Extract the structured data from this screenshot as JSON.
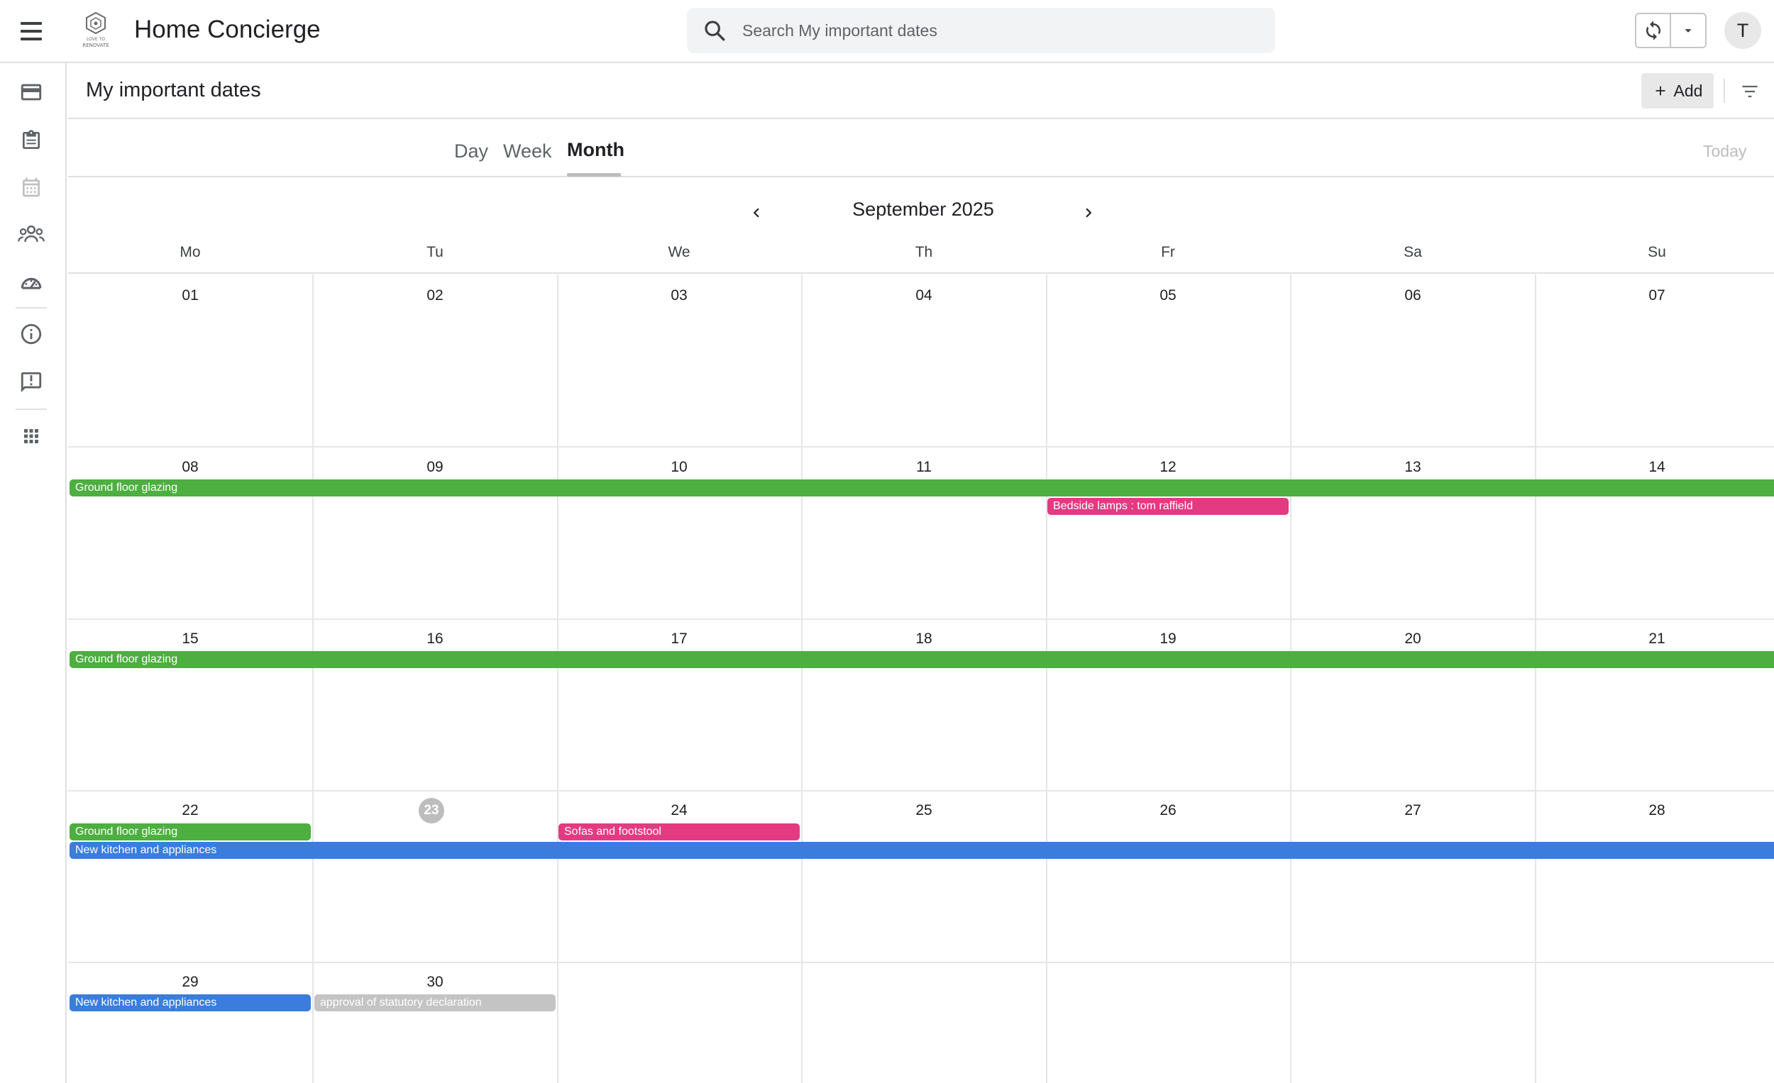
{
  "topbar": {
    "app_title": "Home Concierge",
    "logo_text_top": "LOVE TO",
    "logo_text_bottom": "RENOVATE",
    "search_placeholder": "Search My important dates",
    "avatar_initial": "T"
  },
  "sidebar": {
    "items": [
      "card-icon",
      "clipboard-icon",
      "calendar-icon",
      "people-icon",
      "dashboard-icon",
      "info-icon",
      "feedback-icon",
      "apps-grid-icon"
    ]
  },
  "header": {
    "title": "My important dates",
    "add_label": "Add"
  },
  "views": {
    "day": "Day",
    "week": "Week",
    "month": "Month",
    "selected": "Month",
    "today_label": "Today"
  },
  "calendar": {
    "month_label": "September 2025",
    "weekdays": [
      "Mo",
      "Tu",
      "We",
      "Th",
      "Fr",
      "Sa",
      "Su"
    ],
    "weeks": [
      [
        "01",
        "02",
        "03",
        "04",
        "05",
        "06",
        "07"
      ],
      [
        "08",
        "09",
        "10",
        "11",
        "12",
        "13",
        "14"
      ],
      [
        "15",
        "16",
        "17",
        "18",
        "19",
        "20",
        "21"
      ],
      [
        "22",
        "23",
        "24",
        "25",
        "26",
        "27",
        "28"
      ],
      [
        "29",
        "30",
        "",
        "",
        "",
        "",
        ""
      ]
    ],
    "today": "23",
    "events": [
      {
        "title": "Ground floor glazing",
        "color": "#4caf3f"
      },
      {
        "title": "Bedside lamps : tom raffield",
        "color": "#e33a82"
      },
      {
        "title": "Ground floor glazing",
        "color": "#4caf3f"
      },
      {
        "title": "Ground floor glazing",
        "color": "#4caf3f"
      },
      {
        "title": "Sofas and footstool",
        "color": "#e33a82"
      },
      {
        "title": "New kitchen and appliances",
        "color": "#3a7ddc"
      },
      {
        "title": "New kitchen and appliances",
        "color": "#3a7ddc"
      },
      {
        "title": "approval of statutory declaration",
        "color": "#c4c4c4"
      }
    ]
  }
}
